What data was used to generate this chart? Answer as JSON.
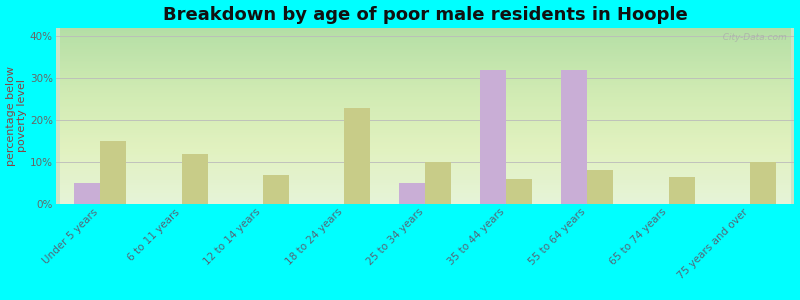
{
  "title": "Breakdown by age of poor male residents in Hoople",
  "ylabel": "percentage below\npoverty level",
  "categories": [
    "Under 5 years",
    "6 to 11 years",
    "12 to 14 years",
    "18 to 24 years",
    "25 to 34 years",
    "35 to 44 years",
    "55 to 64 years",
    "65 to 74 years",
    "75 years and over"
  ],
  "hoople": [
    5.0,
    0,
    0,
    0,
    5.0,
    32.0,
    32.0,
    0,
    0
  ],
  "north_dakota": [
    15.0,
    12.0,
    7.0,
    23.0,
    10.0,
    6.0,
    8.0,
    6.5,
    10.0
  ],
  "hoople_color": "#c9aed6",
  "nd_color": "#c8cc88",
  "bg_color": "#00ffff",
  "ylim": [
    0,
    42
  ],
  "yticks": [
    0,
    10,
    20,
    30,
    40
  ],
  "ytick_labels": [
    "0%",
    "10%",
    "20%",
    "30%",
    "40%"
  ],
  "title_fontsize": 13,
  "axis_label_fontsize": 8,
  "tick_fontsize": 7.5,
  "bar_width": 0.32,
  "watermark": "  City-Data.com"
}
